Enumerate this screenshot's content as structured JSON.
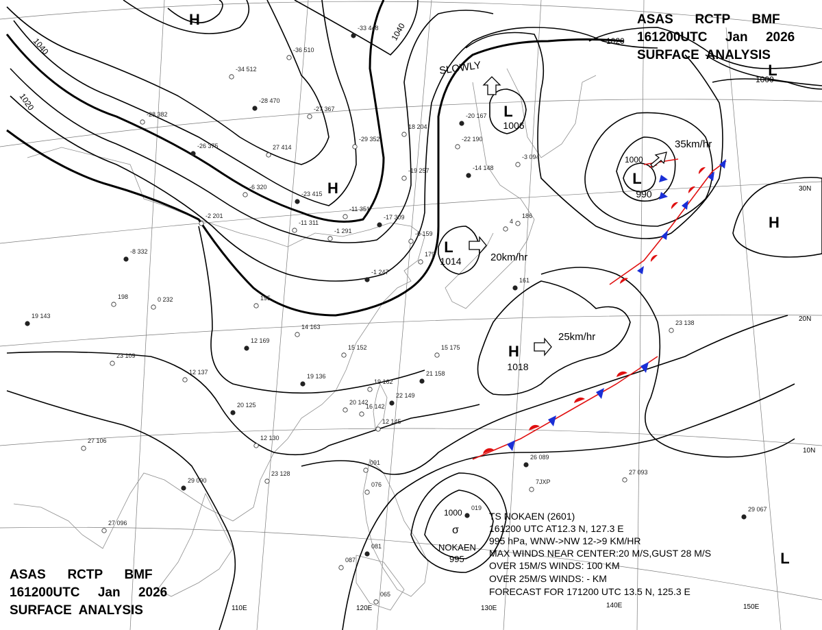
{
  "header": {
    "top_right": [
      "ASAS      RCTP      BMF",
      "161200UTC     Jan     2026",
      "SURFACE  ANALYSIS"
    ],
    "bottom_left": [
      "ASAS      RCTP      BMF",
      "161200UTC     Jan     2026",
      "SURFACE  ANALYSIS"
    ]
  },
  "colors": {
    "high": "#1a2fd6",
    "low": "#d61a1a",
    "warm_front": "#e01010",
    "cold_front": "#1a2fd6",
    "isobar": "#000000"
  },
  "pressure_centers": [
    {
      "type": "H",
      "value": ""
    },
    {
      "type": "H",
      "value": ""
    },
    {
      "type": "L",
      "value": "1006"
    },
    {
      "type": "L",
      "value": "990"
    },
    {
      "type": "L",
      "value": "1014"
    },
    {
      "type": "H",
      "value": "1018"
    },
    {
      "type": "H",
      "value": ""
    },
    {
      "type": "L",
      "value": ""
    },
    {
      "type": "L",
      "value": ""
    }
  ],
  "isobar_labels": [
    "1040",
    "1040",
    "1020",
    "1020",
    "1000",
    "1000",
    "1000"
  ],
  "movement_labels": {
    "slowly": "SLOWLY",
    "low_ne": "35km/hr",
    "low_sea": "20km/hr",
    "high_pac": "25km/hr"
  },
  "longitude_labels": [
    "110E",
    "120E",
    "130E",
    "140E",
    "150E"
  ],
  "latitude_labels": [
    "30N",
    "20N",
    "10N"
  ],
  "typhoon": {
    "name_label": "NOKAEN",
    "pressure_label": "995",
    "lines": [
      "TS  NOKAEN  (2601)",
      "161200 UTC  AT12.3 N, 127.3 E",
      "995 hPa, WNW->NW  12->9 KM/HR",
      "MAX WINDS NEAR CENTER:20 M/S,GUST 28 M/S",
      "OVER 15M/S WINDS: 100 KM",
      "OVER 25M/S WINDS: - KM",
      "FORECAST FOR 171200 UTC 13.5 N, 125.3 E"
    ]
  },
  "station_obs": [
    "-33 448",
    "-36 510",
    "-34 512",
    "-28 470",
    "-27 367",
    "-28 382",
    "-26 375",
    "27 414",
    "-6 320",
    "-23 415",
    "-29 352",
    "18 204",
    "-20 167",
    "-22 190",
    "-19 257",
    "-14 148",
    "-3 094",
    "-11 351",
    "-17 309",
    "-1 291",
    "-11 311",
    "-8 332",
    "0 232",
    "198",
    "19 143",
    "195",
    "14 163",
    "12 169",
    "23 109",
    "12 137",
    "19 136",
    "15 152",
    "15 175",
    "21 158",
    "16 142",
    "19 162",
    "22 149",
    "20 142",
    "12 145",
    "20 125",
    "12 130",
    "23 128",
    "29 090",
    "27 106",
    "27 096",
    "26 089",
    "27 093",
    "23 138",
    "29 067",
    "091",
    "076",
    "081",
    "087",
    "065",
    "019",
    "-6 159",
    "179",
    "161",
    "186",
    "4",
    "-1 247",
    "7JXP",
    "-2 201"
  ]
}
